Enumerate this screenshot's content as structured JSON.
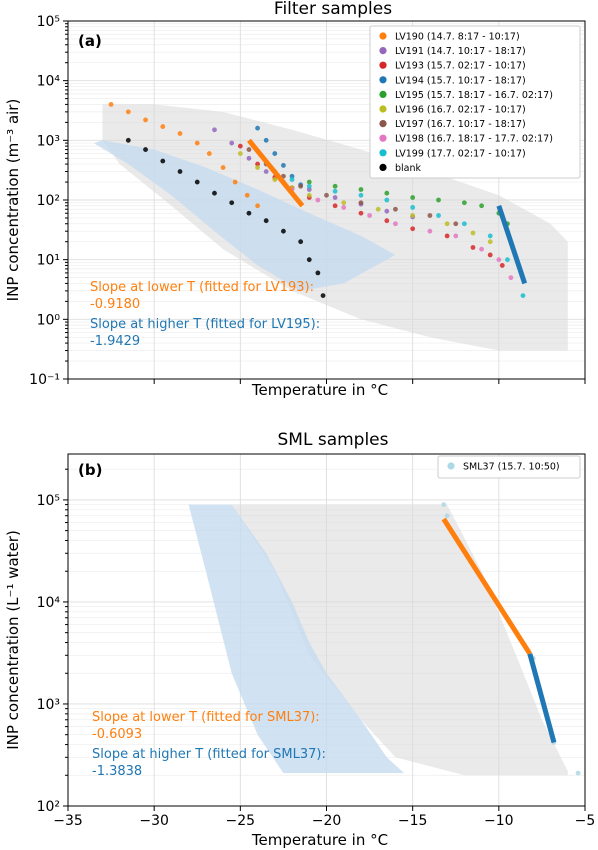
{
  "chart_data": [
    {
      "type": "scatter",
      "title": "Filter samples",
      "panel_label": "(a)",
      "xlabel": "Temperature in °C",
      "ylabel": "INP concentration (m⁻³ air)",
      "xlim": [
        -35,
        -5
      ],
      "ylim_exp": [
        -1,
        5
      ],
      "yscale": "log",
      "y_tick_labels": [
        "10⁻¹",
        "10⁰",
        "10¹",
        "10²",
        "10³",
        "10⁴",
        "10⁵"
      ],
      "legend_position": "top-right",
      "series": [
        {
          "name": "LV190 (14.7. 8:17 - 10:17)",
          "color": "#ff7f0e",
          "points": [
            [
              -32.5,
              4000
            ],
            [
              -31.5,
              3000
            ],
            [
              -30.5,
              2200
            ],
            [
              -29.5,
              1700
            ],
            [
              -28.5,
              1300
            ],
            [
              -27.5,
              900
            ],
            [
              -26.8,
              600
            ],
            [
              -26,
              350
            ],
            [
              -25.3,
              200
            ],
            [
              -24.6,
              120
            ],
            [
              -24,
              80
            ]
          ]
        },
        {
          "name": "LV191 (14.7. 10:17 - 18:17)",
          "color": "#9467bd",
          "points": [
            [
              -26.5,
              1500
            ],
            [
              -25.5,
              900
            ],
            [
              -24.5,
              500
            ],
            [
              -23.5,
              300
            ],
            [
              -22.5,
              200
            ],
            [
              -21,
              150
            ],
            [
              -19.5,
              110
            ],
            [
              -18,
              85
            ],
            [
              -16.5,
              65
            ],
            [
              -15,
              52
            ]
          ]
        },
        {
          "name": "LV193 (15.7. 02:17 - 10:17)",
          "color": "#d62728",
          "points": [
            [
              -25,
              800
            ],
            [
              -24,
              400
            ],
            [
              -23,
              240
            ],
            [
              -22,
              160
            ],
            [
              -21,
              110
            ],
            [
              -19.5,
              80
            ],
            [
              -18,
              60
            ],
            [
              -16.5,
              45
            ],
            [
              -15,
              33
            ],
            [
              -13,
              25
            ],
            [
              -11.5,
              16
            ],
            [
              -10.5,
              12
            ],
            [
              -9.8,
              8
            ]
          ]
        },
        {
          "name": "LV194 (15.7. 10:17 - 18:17)",
          "color": "#1f77b4",
          "points": [
            [
              -24,
              1600
            ],
            [
              -23.5,
              1000
            ],
            [
              -23,
              600
            ],
            [
              -22.5,
              380
            ],
            [
              -22,
              250
            ],
            [
              -21.5,
              180
            ]
          ]
        },
        {
          "name": "LV195 (15.7. 18:17 - 16.7. 02:17)",
          "color": "#2ca02c",
          "points": [
            [
              -21,
              200
            ],
            [
              -19.5,
              170
            ],
            [
              -18,
              150
            ],
            [
              -16.5,
              130
            ],
            [
              -15,
              110
            ],
            [
              -13.5,
              100
            ],
            [
              -12,
              90
            ],
            [
              -11,
              80
            ],
            [
              -10,
              60
            ],
            [
              -9.5,
              40
            ]
          ]
        },
        {
          "name": "LV196 (16.7. 02:17 - 10:17)",
          "color": "#bcbd22",
          "points": [
            [
              -25,
              600
            ],
            [
              -24,
              350
            ],
            [
              -23,
              220
            ],
            [
              -22,
              160
            ],
            [
              -21,
              120
            ],
            [
              -19,
              90
            ],
            [
              -17,
              70
            ],
            [
              -15,
              55
            ],
            [
              -13,
              40
            ],
            [
              -11.5,
              28
            ],
            [
              -10.5,
              20
            ]
          ]
        },
        {
          "name": "LV197 (16.7. 10:17 - 18:17)",
          "color": "#8c564b",
          "points": [
            [
              -24.5,
              700
            ],
            [
              -23.5,
              400
            ],
            [
              -22.5,
              250
            ],
            [
              -21.5,
              170
            ],
            [
              -20,
              120
            ],
            [
              -18,
              90
            ],
            [
              -16,
              70
            ],
            [
              -14,
              55
            ],
            [
              -12.5,
              40
            ]
          ]
        },
        {
          "name": "LV198 (16.7. 18:17 - 17.7. 02:17)",
          "color": "#e377c2",
          "points": [
            [
              -22,
              150
            ],
            [
              -20.5,
              100
            ],
            [
              -19,
              75
            ],
            [
              -17.5,
              55
            ],
            [
              -16,
              40
            ],
            [
              -14,
              30
            ],
            [
              -12.5,
              25
            ],
            [
              -11,
              15
            ],
            [
              -10,
              10
            ],
            [
              -9.3,
              5
            ]
          ]
        },
        {
          "name": "LV199 (17.7. 02:17 - 10:17)",
          "color": "#17becf",
          "points": [
            [
              -23,
              300
            ],
            [
              -22,
              220
            ],
            [
              -21,
              170
            ],
            [
              -19.5,
              140
            ],
            [
              -18,
              120
            ],
            [
              -16.5,
              100
            ],
            [
              -15,
              75
            ],
            [
              -13.5,
              55
            ],
            [
              -12,
              40
            ],
            [
              -10.5,
              25
            ],
            [
              -9.5,
              10
            ],
            [
              -8.6,
              2.5
            ]
          ]
        },
        {
          "name": "blank",
          "color": "#000000",
          "points": [
            [
              -31.5,
              1000
            ],
            [
              -30.5,
              700
            ],
            [
              -29.5,
              450
            ],
            [
              -28.5,
              300
            ],
            [
              -27.5,
              200
            ],
            [
              -26.5,
              130
            ],
            [
              -25.5,
              90
            ],
            [
              -24.5,
              60
            ],
            [
              -23.5,
              45
            ],
            [
              -22.5,
              30
            ],
            [
              -21.5,
              20
            ],
            [
              -21,
              10
            ],
            [
              -20.5,
              6
            ],
            [
              -20.2,
              2.5
            ]
          ]
        }
      ],
      "fits": [
        {
          "color": "#ff7f0e",
          "from": [
            -24.5,
            1000
          ],
          "to": [
            -21.4,
            80
          ]
        },
        {
          "color": "#1f77b4",
          "from": [
            -10,
            80
          ],
          "to": [
            -8.5,
            4
          ]
        }
      ],
      "annotations": [
        {
          "color": "#ff7f0e",
          "line1": "Slope at lower T (fitted for LV193):",
          "line2": "-0.9180"
        },
        {
          "color": "#1f77b4",
          "line1": "Slope at higher T (fitted for LV195):",
          "line2": "-1.9429"
        }
      ],
      "shaded_band": {
        "color": "#c6dbef",
        "upper": [
          [
            -33,
            1000
          ],
          [
            -30,
            700
          ],
          [
            -27,
            350
          ],
          [
            -24,
            150
          ],
          [
            -21,
            60
          ],
          [
            -18,
            25
          ],
          [
            -16,
            12
          ]
        ],
        "lower": [
          [
            -16,
            12
          ],
          [
            -19,
            4
          ],
          [
            -21.5,
            3
          ],
          [
            -24,
            8
          ],
          [
            -26.5,
            30
          ],
          [
            -29,
            120
          ],
          [
            -31.5,
            400
          ],
          [
            -33.5,
            900
          ]
        ]
      },
      "background_cloud": {
        "color": "#d9d9d9",
        "upper": [
          [
            -33,
            4000
          ],
          [
            -30,
            4000
          ],
          [
            -26,
            3000
          ],
          [
            -22,
            1500
          ],
          [
            -18,
            700
          ],
          [
            -14,
            300
          ],
          [
            -10,
            120
          ],
          [
            -7,
            40
          ],
          [
            -6,
            20
          ]
        ],
        "lower": [
          [
            -6,
            0.3
          ],
          [
            -10,
            0.3
          ],
          [
            -14,
            0.5
          ],
          [
            -18,
            1
          ],
          [
            -22,
            3
          ],
          [
            -26,
            15
          ],
          [
            -29,
            80
          ],
          [
            -32,
            400
          ],
          [
            -33,
            1000
          ]
        ]
      }
    },
    {
      "type": "scatter",
      "title": "SML samples",
      "panel_label": "(b)",
      "xlabel": "Temperature in °C",
      "ylabel": "INP concentration (L⁻¹ water)",
      "xlim": [
        -35,
        -5
      ],
      "ylim_exp": [
        2,
        5.45
      ],
      "yscale": "log",
      "x_tick_labels": [
        "−35",
        "−30",
        "−25",
        "−20",
        "−15",
        "−10",
        "−5"
      ],
      "y_tick_labels": [
        "10²",
        "10³",
        "10⁴",
        "10⁵"
      ],
      "legend_position": "top-right",
      "series": [
        {
          "name": "SML37 (15.7. 10:50)",
          "color": "#add8e6",
          "points": [
            [
              -13.2,
              90000
            ],
            [
              -13,
              70000
            ],
            [
              -8.2,
              3000
            ],
            [
              -8,
              2800
            ],
            [
              -6.8,
              420
            ],
            [
              -5.4,
              210
            ]
          ]
        }
      ],
      "fits": [
        {
          "color": "#ff7f0e",
          "from": [
            -13.2,
            65000
          ],
          "to": [
            -8.2,
            3100
          ]
        },
        {
          "color": "#1f77b4",
          "from": [
            -8.2,
            3100
          ],
          "to": [
            -6.8,
            420
          ]
        }
      ],
      "annotations": [
        {
          "color": "#ff7f0e",
          "line1": "Slope at lower T (fitted for SML37):",
          "line2": "-0.6093"
        },
        {
          "color": "#1f77b4",
          "line1": "Slope at higher T (fitted for SML37):",
          "line2": "-1.3838"
        }
      ],
      "shaded_band": {
        "color": "#c6dbef",
        "upper": [
          [
            -28,
            90000
          ],
          [
            -25.5,
            90000
          ],
          [
            -23.5,
            30000
          ],
          [
            -22,
            10000
          ],
          [
            -21,
            4000
          ],
          [
            -20,
            2000
          ],
          [
            -18,
            700
          ],
          [
            -16.5,
            300
          ],
          [
            -15.5,
            210
          ]
        ],
        "lower": [
          [
            -15.5,
            210
          ],
          [
            -20,
            210
          ],
          [
            -22.5,
            210
          ],
          [
            -24,
            500
          ],
          [
            -25.5,
            2000
          ],
          [
            -27,
            20000
          ],
          [
            -28,
            90000
          ]
        ]
      },
      "background_cloud": {
        "color": "#d9d9d9",
        "upper": [
          [
            -25.5,
            90000
          ],
          [
            -13,
            90000
          ],
          [
            -11,
            20000
          ],
          [
            -9,
            3000
          ],
          [
            -7.5,
            700
          ],
          [
            -6,
            220
          ]
        ],
        "lower": [
          [
            -6,
            200
          ],
          [
            -12,
            200
          ],
          [
            -16,
            300
          ],
          [
            -18,
            700
          ],
          [
            -21,
            3000
          ],
          [
            -23,
            20000
          ],
          [
            -25.5,
            90000
          ]
        ]
      }
    }
  ]
}
